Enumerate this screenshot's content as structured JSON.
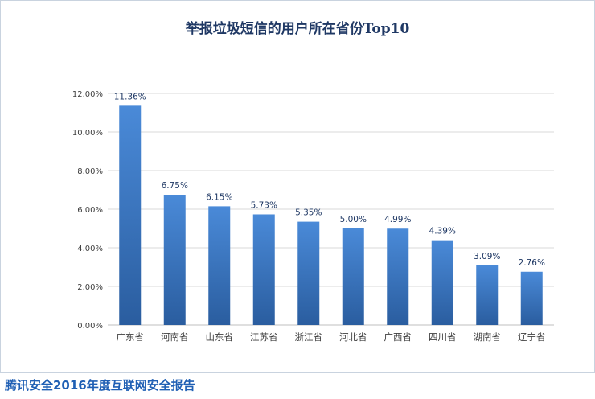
{
  "chart_data": {
    "type": "bar",
    "title": "举报垃圾短信的用户所在省份Top10",
    "categories": [
      "广东省",
      "河南省",
      "山东省",
      "江苏省",
      "浙江省",
      "河北省",
      "广西省",
      "四川省",
      "湖南省",
      "辽宁省"
    ],
    "values": [
      11.36,
      6.75,
      6.15,
      5.73,
      5.35,
      5.0,
      4.99,
      4.39,
      3.09,
      2.76
    ],
    "data_labels": [
      "11.36%",
      "6.75%",
      "6.15%",
      "5.73%",
      "5.35%",
      "5.00%",
      "4.99%",
      "4.39%",
      "3.09%",
      "2.76%"
    ],
    "ylim": [
      0,
      12
    ],
    "yticks": [
      "0.00%",
      "2.00%",
      "4.00%",
      "6.00%",
      "8.00%",
      "10.00%",
      "12.00%"
    ],
    "grid": true,
    "legend": "none",
    "bar_color_top": "#4a8ad8",
    "bar_color_bottom": "#2a5d9f"
  },
  "footer": {
    "source": "腾讯安全2016年度互联网安全报告"
  }
}
